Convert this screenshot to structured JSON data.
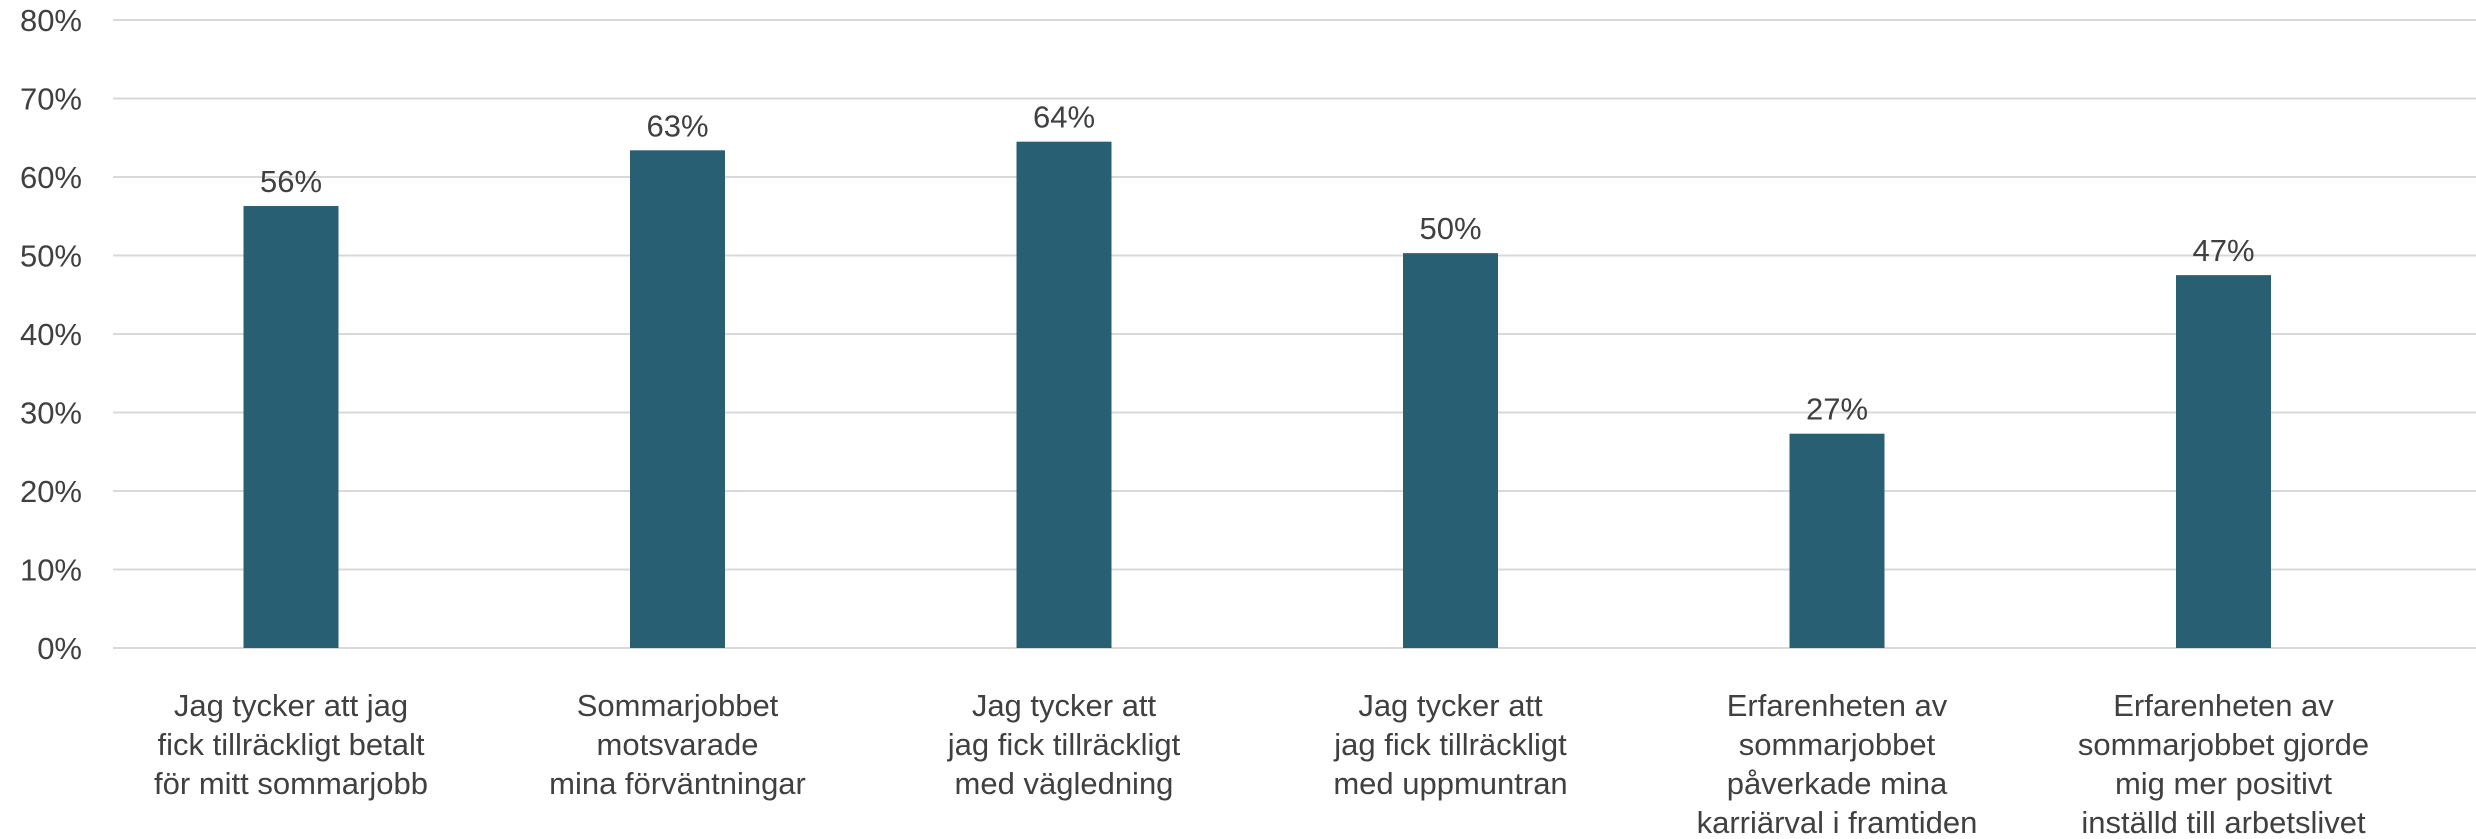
{
  "chart_data": {
    "type": "bar",
    "categories": [
      [
        "Jag tycker att jag",
        "fick tillräckligt betalt",
        "för mitt sommarjobb"
      ],
      [
        "Sommarjobbet",
        "motsvarade",
        "mina förväntningar"
      ],
      [
        "Jag tycker att",
        "jag fick tillräckligt",
        "med vägledning"
      ],
      [
        "Jag tycker att",
        "jag fick tillräckligt",
        "med uppmuntran"
      ],
      [
        "Erfarenheten av",
        "sommarjobbet",
        "påverkade mina",
        "karriärval i framtiden"
      ],
      [
        "Erfarenheten av",
        "sommarjobbet gjorde",
        "mig mer positivt",
        "inställd till arbetslivet"
      ]
    ],
    "values": [
      56.3,
      63.4,
      64.5,
      50.3,
      27.3,
      47.5
    ],
    "data_labels": [
      "56%",
      "63%",
      "64%",
      "50%",
      "27%",
      "47%"
    ],
    "y_ticks": [
      "0%",
      "10%",
      "20%",
      "30%",
      "40%",
      "50%",
      "60%",
      "70%",
      "80%"
    ],
    "ylim": [
      0,
      80
    ],
    "grid": true,
    "bar_color": "#285f73",
    "grid_color": "#d9d9d9",
    "text_color": "#404040"
  }
}
